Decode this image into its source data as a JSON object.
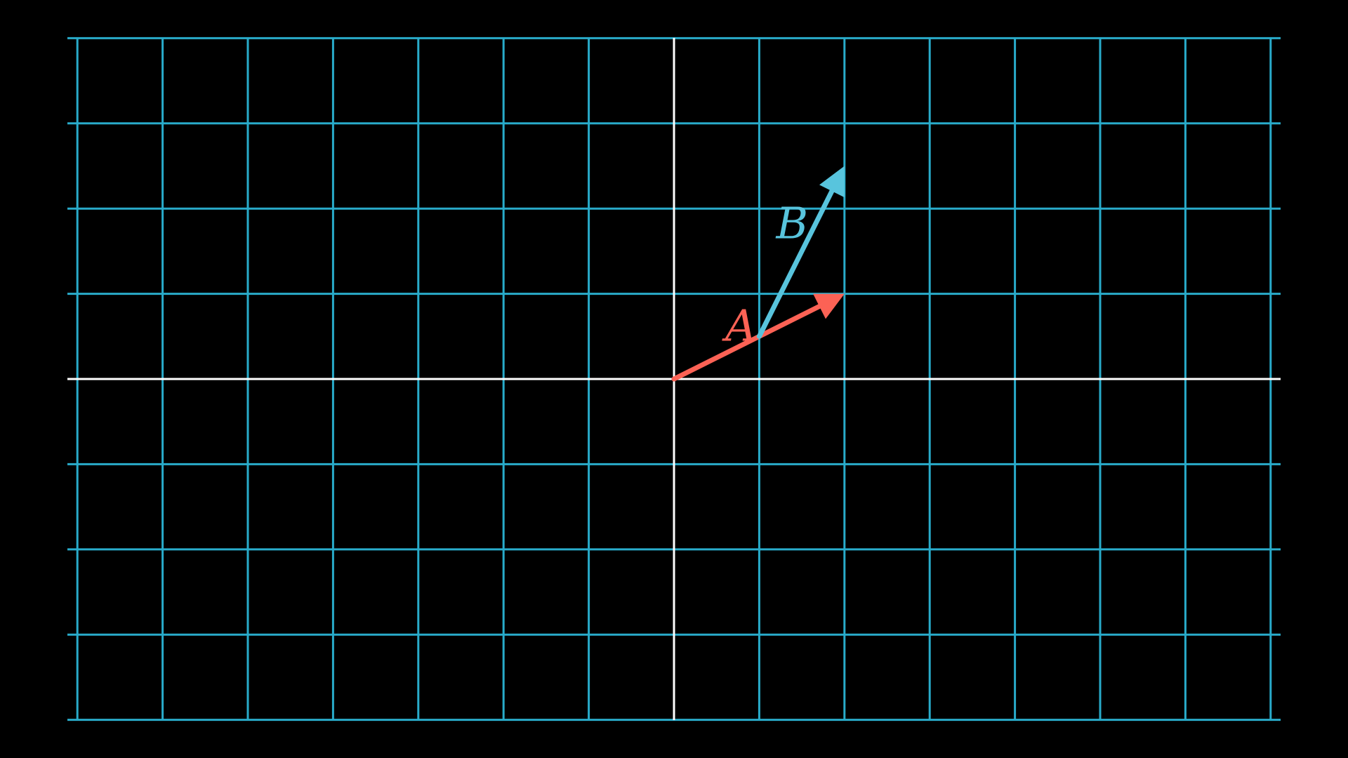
{
  "scene": {
    "background": "#000000",
    "grid_color": "#29abca",
    "axis_color": "#ffffff"
  },
  "plane": {
    "x_range": [
      -7,
      7
    ],
    "y_range": [
      -4,
      4
    ],
    "step": 1
  },
  "vectors": [
    {
      "id": "a",
      "label": "A",
      "color": "#fc6255",
      "tail": [
        0,
        0
      ],
      "tip": [
        2,
        1
      ],
      "label_at": [
        1,
        0.5
      ]
    },
    {
      "id": "b",
      "label": "B",
      "color": "#58c4dd",
      "tail": [
        1,
        0.5
      ],
      "tip": [
        2,
        2.5
      ],
      "label_at": [
        1.6,
        1.7
      ]
    }
  ]
}
